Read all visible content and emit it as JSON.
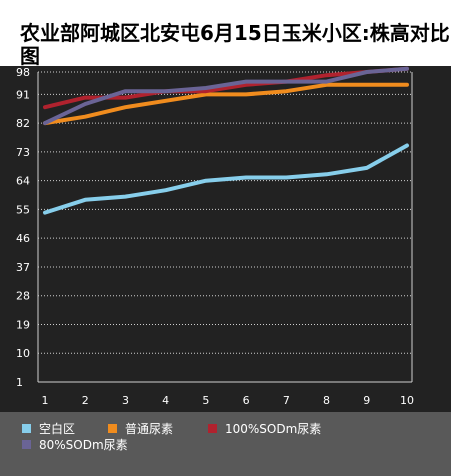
{
  "title": "农业部阿城区北安屯6月15日玉米小区:株高对比图",
  "colors": {
    "plot_background": "#222222",
    "frame_background": "#ffffff",
    "legend_background": "#595959",
    "grid": "#d0d0d0",
    "axis_text": "#ffffff"
  },
  "chart_data": {
    "type": "line",
    "title": "农业部阿城区北安屯6月15日玉米小区:株高对比图",
    "x": [
      1,
      2,
      3,
      4,
      5,
      6,
      7,
      8,
      9,
      10
    ],
    "x_tick_labels": [
      "1",
      "2",
      "3",
      "4",
      "5",
      "6",
      "7",
      "8",
      "9",
      "10"
    ],
    "y_tick_labels": [
      "1",
      "10",
      "19",
      "28",
      "37",
      "46",
      "55",
      "64",
      "73",
      "82",
      "91",
      "98"
    ],
    "y_ticks": [
      1,
      10,
      19,
      28,
      37,
      46,
      55,
      64,
      73,
      82,
      91,
      98
    ],
    "ylim": [
      1,
      98
    ],
    "grid": true,
    "grid_style": "dotted",
    "legend_position": "bottom",
    "series": [
      {
        "name": "空白区",
        "color": "#87ceeb",
        "values": [
          54,
          58,
          59,
          61,
          64,
          65,
          65,
          66,
          68,
          75
        ]
      },
      {
        "name": "普通尿素",
        "color": "#f08c1e",
        "values": [
          82,
          84,
          87,
          89,
          91,
          91,
          92,
          94,
          94,
          94
        ]
      },
      {
        "name": "100%SODm尿素",
        "color": "#b0222e",
        "values": [
          87,
          90,
          90,
          92,
          92,
          94,
          95,
          97,
          98,
          99
        ]
      },
      {
        "name": "80%SODm尿素",
        "color": "#6a6496",
        "values": [
          82,
          88,
          92,
          92,
          93,
          95,
          95,
          95,
          98,
          99
        ]
      }
    ]
  }
}
